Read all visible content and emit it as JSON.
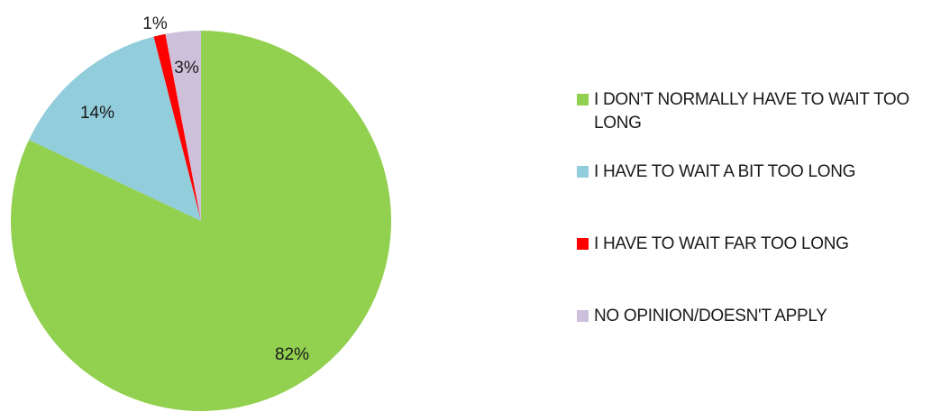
{
  "chart_data": {
    "type": "pie",
    "title": "",
    "slices": [
      {
        "label": "I DON'T NORMALLY HAVE TO WAIT TOO LONG",
        "value": 82,
        "display": "82%",
        "color": "#92d050"
      },
      {
        "label": "I HAVE TO WAIT A BIT TOO LONG",
        "value": 14,
        "display": "14%",
        "color": "#92cddc"
      },
      {
        "label": "I HAVE TO WAIT FAR TOO LONG",
        "value": 1,
        "display": "1%",
        "color": "#ff0000"
      },
      {
        "label": "NO OPINION/DOESN'T APPLY",
        "value": 3,
        "display": "3%",
        "color": "#ccc0da"
      }
    ],
    "start": "12 o'clock",
    "direction": "clockwise",
    "legend_position": "right"
  }
}
